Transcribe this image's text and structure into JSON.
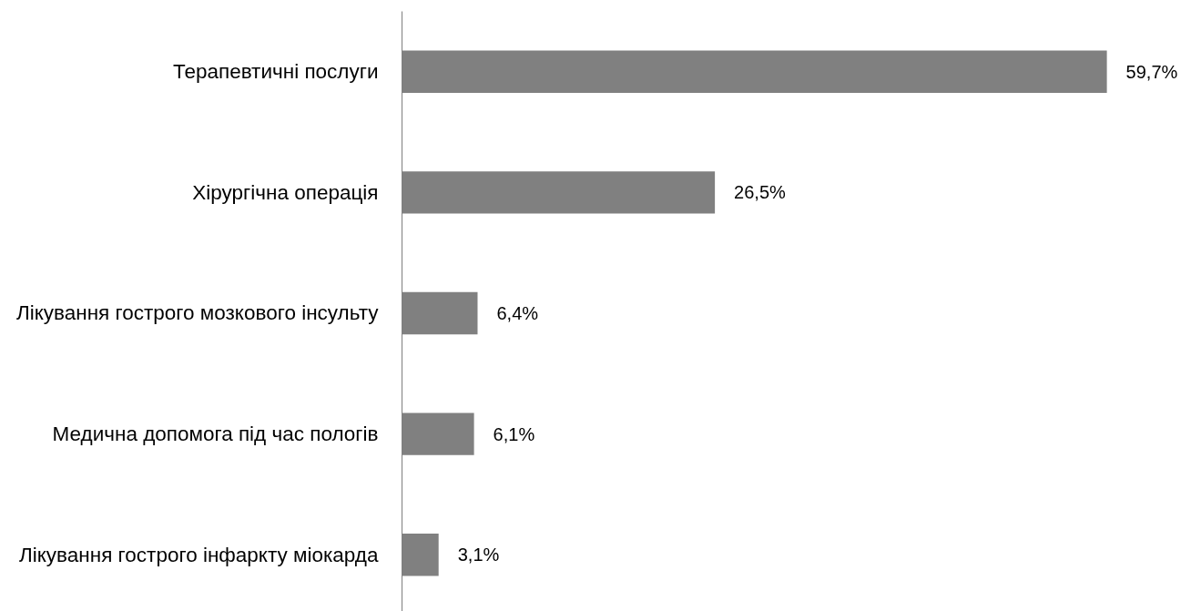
{
  "chart_data": {
    "type": "bar",
    "orientation": "horizontal",
    "categories": [
      "Терапевтичні послуги",
      "Хірургічна операція",
      "Лікування гострого мозкового інсульту",
      "Медична допомога під час пологів",
      "Лікування гострого інфаркту міокарда"
    ],
    "values": [
      59.7,
      26.5,
      6.4,
      6.1,
      3.1
    ],
    "color": "#808080",
    "value_labels": [
      "59,7%",
      "26,5%",
      "6,4%",
      "6,1%",
      "3,1%"
    ],
    "tick_labels": "y"
  }
}
